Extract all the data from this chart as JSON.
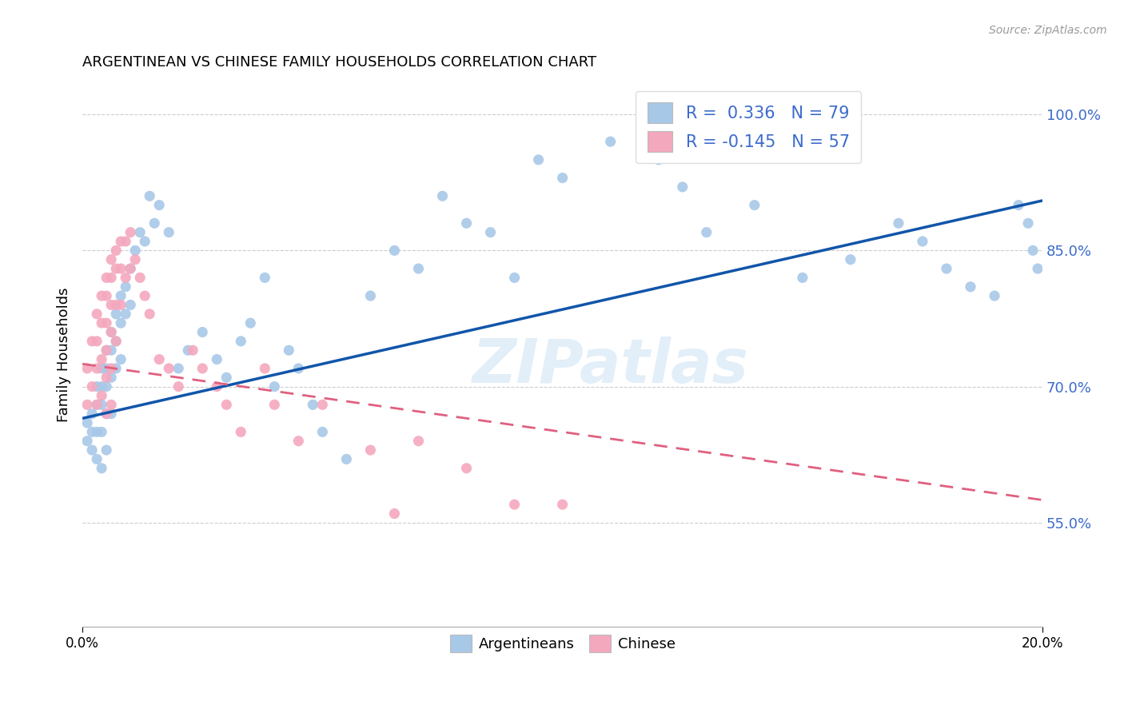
{
  "title": "ARGENTINEAN VS CHINESE FAMILY HOUSEHOLDS CORRELATION CHART",
  "source": "Source: ZipAtlas.com",
  "ylabel": "Family Households",
  "ytick_labels": [
    "55.0%",
    "70.0%",
    "85.0%",
    "100.0%"
  ],
  "ytick_values": [
    0.55,
    0.7,
    0.85,
    1.0
  ],
  "xlim": [
    0.0,
    0.2
  ],
  "ylim": [
    0.435,
    1.035
  ],
  "blue_color": "#a8c8e8",
  "pink_color": "#f4a8be",
  "line_blue": "#1155aa",
  "line_pink": "#e06080",
  "background_color": "#ffffff",
  "watermark": "ZIPatlas",
  "legend_label_arg": "Argentineans",
  "legend_label_chi": "Chinese",
  "blue_line_x0": 0.0,
  "blue_line_y0": 0.665,
  "blue_line_x1": 0.2,
  "blue_line_y1": 0.905,
  "pink_line_x0": 0.0,
  "pink_line_y0": 0.725,
  "pink_line_x1": 0.2,
  "pink_line_y1": 0.575,
  "arg_x": [
    0.001,
    0.001,
    0.002,
    0.002,
    0.002,
    0.003,
    0.003,
    0.003,
    0.003,
    0.004,
    0.004,
    0.004,
    0.004,
    0.004,
    0.005,
    0.005,
    0.005,
    0.005,
    0.005,
    0.006,
    0.006,
    0.006,
    0.006,
    0.007,
    0.007,
    0.007,
    0.008,
    0.008,
    0.008,
    0.009,
    0.009,
    0.01,
    0.01,
    0.011,
    0.012,
    0.013,
    0.014,
    0.015,
    0.016,
    0.018,
    0.02,
    0.022,
    0.025,
    0.028,
    0.03,
    0.033,
    0.035,
    0.038,
    0.04,
    0.043,
    0.045,
    0.048,
    0.05,
    0.055,
    0.06,
    0.065,
    0.07,
    0.075,
    0.08,
    0.085,
    0.09,
    0.095,
    0.1,
    0.11,
    0.12,
    0.125,
    0.13,
    0.14,
    0.15,
    0.16,
    0.17,
    0.175,
    0.18,
    0.185,
    0.19,
    0.195,
    0.197,
    0.198,
    0.199
  ],
  "arg_y": [
    0.66,
    0.64,
    0.67,
    0.65,
    0.63,
    0.7,
    0.68,
    0.65,
    0.62,
    0.72,
    0.7,
    0.68,
    0.65,
    0.61,
    0.74,
    0.72,
    0.7,
    0.67,
    0.63,
    0.76,
    0.74,
    0.71,
    0.67,
    0.78,
    0.75,
    0.72,
    0.8,
    0.77,
    0.73,
    0.81,
    0.78,
    0.83,
    0.79,
    0.85,
    0.87,
    0.86,
    0.91,
    0.88,
    0.9,
    0.87,
    0.72,
    0.74,
    0.76,
    0.73,
    0.71,
    0.75,
    0.77,
    0.82,
    0.7,
    0.74,
    0.72,
    0.68,
    0.65,
    0.62,
    0.8,
    0.85,
    0.83,
    0.91,
    0.88,
    0.87,
    0.82,
    0.95,
    0.93,
    0.97,
    0.95,
    0.92,
    0.87,
    0.9,
    0.82,
    0.84,
    0.88,
    0.86,
    0.83,
    0.81,
    0.8,
    0.9,
    0.88,
    0.85,
    0.83
  ],
  "chi_x": [
    0.001,
    0.001,
    0.002,
    0.002,
    0.003,
    0.003,
    0.003,
    0.003,
    0.004,
    0.004,
    0.004,
    0.004,
    0.005,
    0.005,
    0.005,
    0.005,
    0.005,
    0.005,
    0.006,
    0.006,
    0.006,
    0.006,
    0.006,
    0.006,
    0.007,
    0.007,
    0.007,
    0.007,
    0.008,
    0.008,
    0.008,
    0.009,
    0.009,
    0.01,
    0.01,
    0.011,
    0.012,
    0.013,
    0.014,
    0.016,
    0.018,
    0.02,
    0.023,
    0.025,
    0.028,
    0.03,
    0.033,
    0.038,
    0.04,
    0.045,
    0.05,
    0.06,
    0.065,
    0.07,
    0.08,
    0.09,
    0.1
  ],
  "chi_y": [
    0.72,
    0.68,
    0.75,
    0.7,
    0.78,
    0.75,
    0.72,
    0.68,
    0.8,
    0.77,
    0.73,
    0.69,
    0.82,
    0.8,
    0.77,
    0.74,
    0.71,
    0.67,
    0.84,
    0.82,
    0.79,
    0.76,
    0.72,
    0.68,
    0.85,
    0.83,
    0.79,
    0.75,
    0.86,
    0.83,
    0.79,
    0.86,
    0.82,
    0.87,
    0.83,
    0.84,
    0.82,
    0.8,
    0.78,
    0.73,
    0.72,
    0.7,
    0.74,
    0.72,
    0.7,
    0.68,
    0.65,
    0.72,
    0.68,
    0.64,
    0.68,
    0.63,
    0.56,
    0.64,
    0.61,
    0.57,
    0.57
  ]
}
